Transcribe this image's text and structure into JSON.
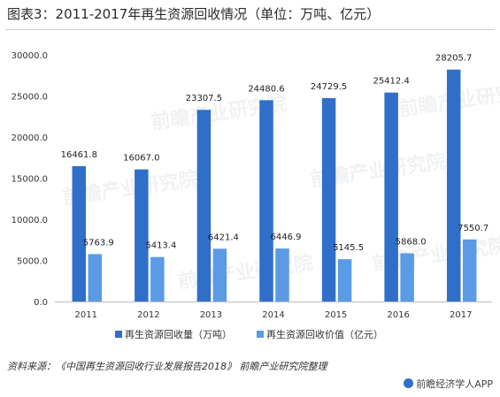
{
  "header": {
    "title": "图表3：2011-2017年再生资源回收情况（单位：万吨、亿元）"
  },
  "footer": {
    "source": "资料来源：《中国再生资源回收行业发展报告2018》 前瞻产业研究院整理",
    "brand": "前瞻经济学人APP",
    "brand_icon": "logo-circle-icon"
  },
  "watermark": {
    "text": "前瞻产业研究院"
  },
  "chart_data": {
    "type": "bar",
    "categories": [
      "2011",
      "2012",
      "2013",
      "2014",
      "2015",
      "2016",
      "2017"
    ],
    "series": [
      {
        "name": "再生资源回收量（万吨）",
        "color": "#2f6fc9",
        "values": [
          16461.8,
          16067.0,
          23307.5,
          24480.6,
          24729.5,
          25412.4,
          28205.7
        ],
        "labels": [
          "16461.8",
          "16067.0",
          "23307.5",
          "24480.6",
          "24729.5",
          "25412.4",
          "28205.7"
        ]
      },
      {
        "name": "再生资源回收价值（亿元）",
        "color": "#5b9be6",
        "values": [
          5763.9,
          5413.4,
          6421.4,
          6446.9,
          5145.5,
          5868.0,
          7550.7
        ],
        "labels": [
          "5763.9",
          "5413.4",
          "6421.4",
          "6446.9",
          "5145.5",
          "5868.0",
          "7550.7"
        ]
      }
    ],
    "ylim": [
      0,
      30000
    ],
    "yticks": [
      0,
      5000,
      10000,
      15000,
      20000,
      25000,
      30000
    ],
    "ytick_labels": [
      "0.0",
      "5000.0",
      "10000.0",
      "15000.0",
      "20000.0",
      "25000.0",
      "30000.0"
    ],
    "grid": false,
    "legend_position": "bottom-center"
  }
}
